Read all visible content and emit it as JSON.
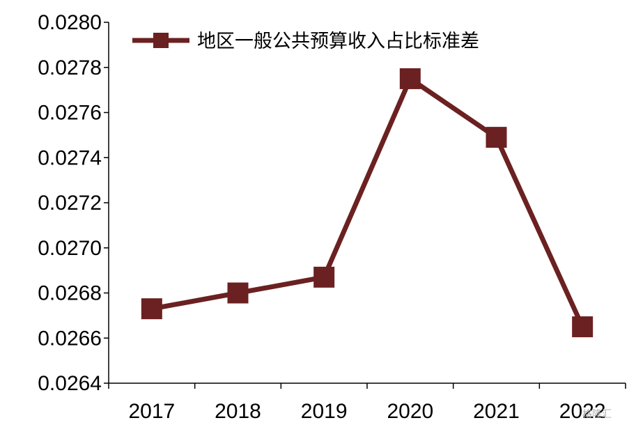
{
  "chart_data": {
    "type": "line",
    "title": "",
    "xlabel": "",
    "ylabel": "",
    "categories": [
      "2017",
      "2018",
      "2019",
      "2020",
      "2021",
      "2022"
    ],
    "series": [
      {
        "name": "地区一般公共预算收入占比标准差",
        "values": [
          0.02673,
          0.0268,
          0.02687,
          0.02775,
          0.02749,
          0.02665
        ],
        "color": "#6b2121",
        "marker": "square"
      }
    ],
    "ylim": [
      0.0264,
      0.028
    ],
    "yticks": [
      "0.0264",
      "0.0266",
      "0.0268",
      "0.0270",
      "0.0272",
      "0.0274",
      "0.0276",
      "0.0278",
      "0.0280"
    ],
    "grid": false,
    "legend_position": "top-left"
  },
  "watermark": "格隆汇"
}
